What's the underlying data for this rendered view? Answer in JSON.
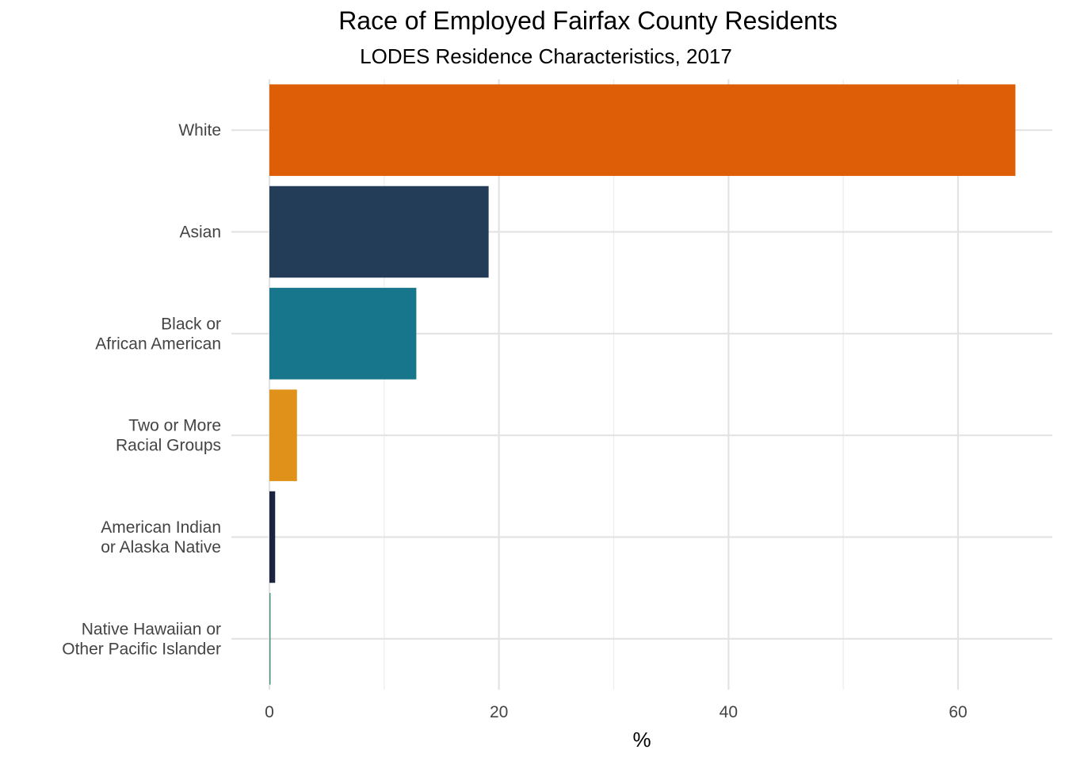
{
  "chart_data": {
    "type": "bar",
    "orientation": "horizontal",
    "title": "Race of Employed Fairfax County Residents",
    "subtitle": "LODES Residence Characteristics, 2017",
    "xlabel": "%",
    "ylabel": "",
    "xlim": [
      0,
      67
    ],
    "xticks": [
      0,
      20,
      40,
      60
    ],
    "grid": true,
    "categories": [
      [
        "White"
      ],
      [
        "Asian"
      ],
      [
        "Black or",
        "African American"
      ],
      [
        "Two or More",
        "Racial Groups"
      ],
      [
        "American Indian",
        "or Alaska Native"
      ],
      [
        "Native Hawaiian or",
        "Other Pacific Islander"
      ]
    ],
    "values": [
      65.0,
      19.1,
      12.8,
      2.4,
      0.5,
      0.1
    ],
    "colors": [
      "#DD5E07",
      "#233D59",
      "#18768C",
      "#E0911A",
      "#1C2540",
      "#4A8C7F"
    ]
  }
}
